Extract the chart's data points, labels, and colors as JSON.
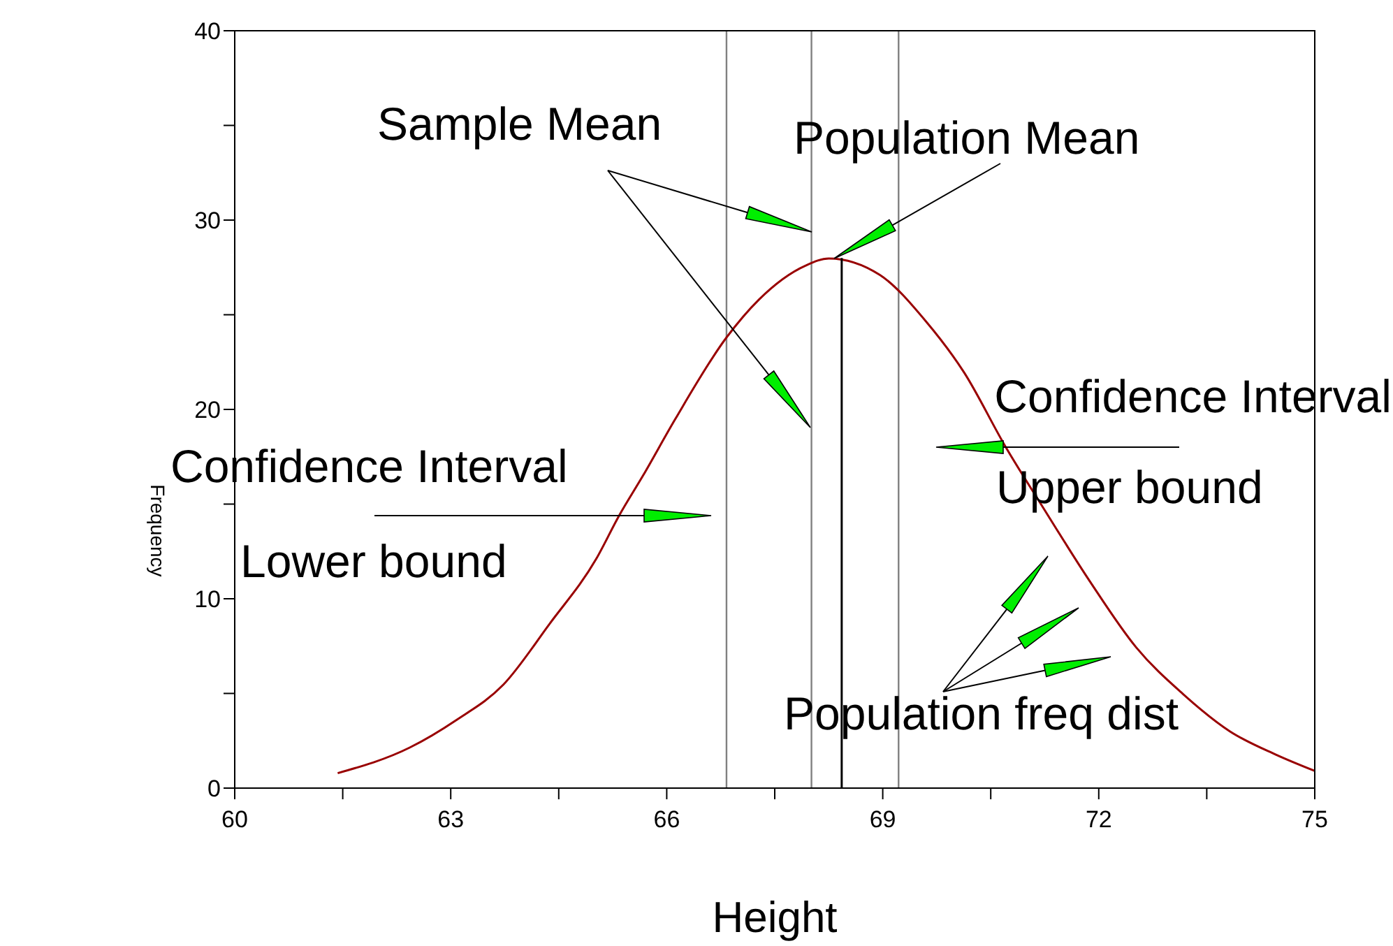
{
  "chart_data": {
    "type": "line",
    "xlabel": "Height",
    "ylabel": "Frequency",
    "xlim": [
      60,
      75
    ],
    "ylim": [
      0,
      40
    ],
    "xticks": [
      60,
      {
        "value": 61.5,
        "label": null
      },
      63,
      {
        "value": 64.5,
        "label": null
      },
      66,
      {
        "value": 67.5,
        "label": null
      },
      69,
      {
        "value": 70.5,
        "label": null
      },
      72,
      {
        "value": 73.5,
        "label": null
      },
      75
    ],
    "yticks": [
      0,
      {
        "value": 5,
        "label": null
      },
      10,
      {
        "value": 15,
        "label": null
      },
      20,
      {
        "value": 25,
        "label": null
      },
      30,
      {
        "value": 35,
        "label": null
      },
      40
    ],
    "series": [
      {
        "color": "#990000",
        "x": [
          61.43,
          62.43,
          63.08,
          63.73,
          64.37,
          65.02,
          65.34,
          65.67,
          66.12,
          66.83,
          67.28,
          67.93,
          68.25,
          68.96,
          69.6,
          70.13,
          70.71,
          71.23,
          71.88,
          72.52,
          73.17,
          73.82,
          74.46,
          75.0
        ],
        "values": [
          0.79,
          2.14,
          3.6,
          5.46,
          8.66,
          12.1,
          14.4,
          16.5,
          19.5,
          23.8,
          25.8,
          27.6,
          27.97,
          27.1,
          24.65,
          21.95,
          18.0,
          14.8,
          10.9,
          7.43,
          4.97,
          3.0,
          1.77,
          0.91
        ]
      },
      {
        "color": "#000000",
        "x": [
          68.43,
          68.43
        ],
        "values": [
          0,
          28
        ]
      }
    ],
    "ref_lines": [
      {
        "axis": "x",
        "value": 66.83,
        "color": "#808080"
      },
      {
        "axis": "x",
        "value": 68.01,
        "color": "#808080"
      },
      {
        "axis": "x",
        "value": 69.22,
        "color": "#808080"
      }
    ],
    "annotations": [
      "Sample Mean",
      "Population Mean",
      "Confidence Interval",
      "Lower bound",
      "Confidence Interval",
      "Upper bound",
      "Population freq dist"
    ],
    "marker": "none",
    "line_style": "solid"
  }
}
